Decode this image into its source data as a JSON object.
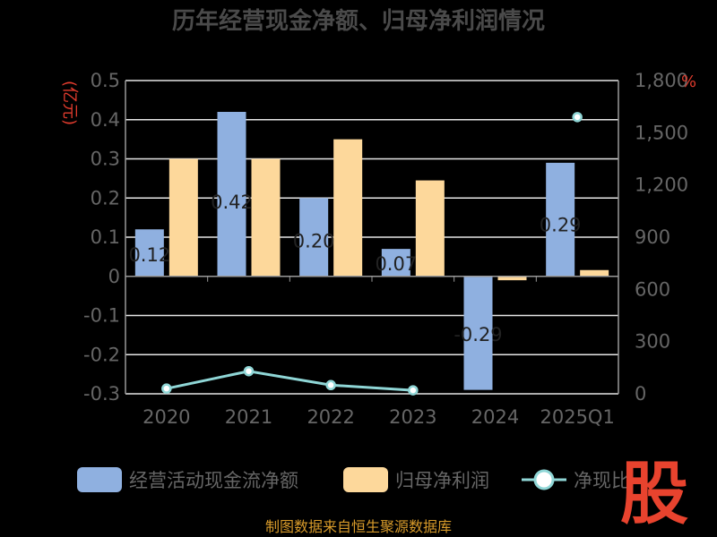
{
  "chart_data": {
    "type": "bar",
    "title": "历年经营现金净额、归母净利润情况",
    "categories": [
      "2020",
      "2021",
      "2022",
      "2023",
      "2024",
      "2025Q1"
    ],
    "y_left": {
      "unit": "(亿元)",
      "ylim": [
        -0.3,
        0.5
      ],
      "ticks": [
        "0.5",
        "0.4",
        "0.3",
        "0.2",
        "0.1",
        "0",
        "-0.1",
        "-0.2",
        "-0.3"
      ]
    },
    "y_right": {
      "unit": "%",
      "ylim": [
        0,
        1800
      ],
      "ticks": [
        "1,800",
        "1,500",
        "1,200",
        "900",
        "600",
        "300",
        "0"
      ]
    },
    "series": [
      {
        "name": "经营活动现金流净额",
        "axis": "left",
        "color": "#8fb0e0",
        "values": [
          0.12,
          0.42,
          0.2,
          0.07,
          -0.29,
          0.29
        ],
        "labels": [
          "0.12",
          "0.42",
          "0.20",
          "0.07",
          "-0.29",
          "0.29"
        ]
      },
      {
        "name": "归母净利润",
        "axis": "left",
        "color": "#fdd89b",
        "values": [
          0.3,
          0.3,
          0.35,
          0.245,
          -0.01,
          0.016
        ]
      },
      {
        "name": "净现比",
        "axis": "right",
        "type": "line",
        "color": "#8fd6d6",
        "values": [
          30,
          130,
          50,
          20,
          null,
          1590
        ]
      }
    ],
    "grid": true,
    "legend": "bottom"
  },
  "footer": {
    "source": "制图数据来自恒生聚源数据库",
    "logo": "股"
  }
}
